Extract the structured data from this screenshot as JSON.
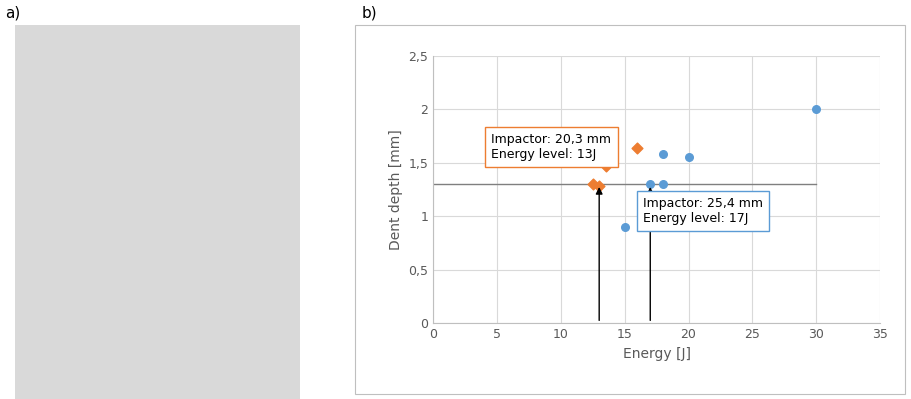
{
  "panel_labels": [
    "a)",
    "b)"
  ],
  "chart_data": {
    "type": "scatter",
    "x_label": "Energy [J]",
    "y_label": "Dent depth [mm]",
    "xlim": [
      0,
      35
    ],
    "xticks": [
      0,
      5,
      10,
      15,
      20,
      25,
      30,
      35
    ],
    "ylim": [
      0,
      2.5
    ],
    "yticks": [
      0,
      {
        "value": 0.5,
        "label": "0,5"
      },
      1,
      {
        "value": 1.5,
        "label": "1,5"
      },
      2,
      {
        "value": 2.5,
        "label": "2,5"
      }
    ],
    "grid": true,
    "series": [
      {
        "color": "#5b9bd5",
        "marker": "circle",
        "x": [
          15,
          17,
          18,
          18,
          20,
          30
        ],
        "values": [
          0.9,
          1.3,
          1.58,
          1.3,
          1.55,
          2.0
        ]
      },
      {
        "color": "#ed7d31",
        "marker": "diamond",
        "x": [
          12.5,
          13,
          13.5,
          16
        ],
        "values": [
          1.3,
          1.28,
          1.47,
          1.64
        ]
      }
    ],
    "reference_lines": [
      {
        "y": 1.3,
        "x_start": 0,
        "x_end": 30
      }
    ],
    "arrows": [
      {
        "x": 13,
        "y_start": 0,
        "y_end": 1.3
      },
      {
        "x": 17,
        "y_start": 0,
        "y_end": 1.3
      }
    ],
    "annotations": [
      {
        "text": "Impactor: 20,3 mm\nEnergy level: 13J",
        "color": "#ed7d31"
      },
      {
        "text": "Impactor: 25,4 mm\nEnergy level: 17J",
        "color": "#5b9bd5"
      }
    ]
  }
}
